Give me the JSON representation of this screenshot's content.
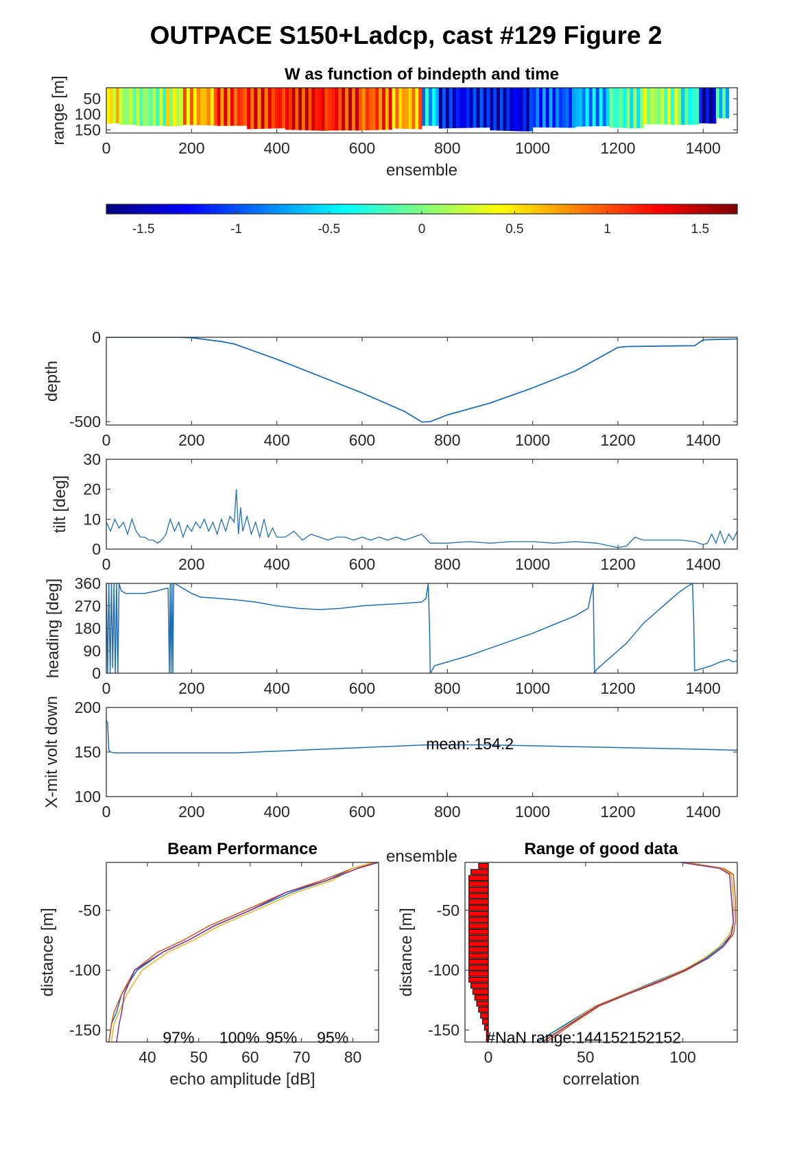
{
  "figure": {
    "title": "OUTPACE S150+Ladcp, cast #129 Figure 2",
    "line_color": "#1f6fb4"
  },
  "chart_data": [
    {
      "id": "w_image",
      "type": "heatmap",
      "title": "W as function of bindepth and time",
      "xlabel": "ensemble",
      "ylabel": "range [m]",
      "xlim": [
        0,
        1480
      ],
      "ylim": [
        15,
        160
      ],
      "xticks": [
        0,
        200,
        400,
        600,
        800,
        1000,
        1200,
        1400
      ],
      "yticks": [
        50,
        100,
        150
      ],
      "colorbar": {
        "clim": [
          -1.7,
          1.7
        ],
        "ticks": [
          -1.5,
          -1,
          -0.5,
          0,
          0.5,
          1,
          1.5
        ],
        "tick_labels": [
          "-1.5",
          "-1",
          "-0.5",
          "0",
          "0.5",
          "1",
          "1.5"
        ],
        "colormap": "jet"
      },
      "segments": [
        {
          "x": [
            0,
            30
          ],
          "w": 0.45,
          "bottom": 130
        },
        {
          "x": [
            30,
            70
          ],
          "w": 0.1,
          "bottom": 140
        },
        {
          "x": [
            70,
            140
          ],
          "w": 0.0,
          "bottom": 145
        },
        {
          "x": [
            140,
            180
          ],
          "w": 0.25,
          "bottom": 140
        },
        {
          "x": [
            180,
            260
          ],
          "w": 0.7,
          "bottom": 140
        },
        {
          "x": [
            260,
            330
          ],
          "w": 1.05,
          "bottom": 145
        },
        {
          "x": [
            330,
            420
          ],
          "w": 1.15,
          "bottom": 150
        },
        {
          "x": [
            420,
            520
          ],
          "w": 1.25,
          "bottom": 155
        },
        {
          "x": [
            520,
            600
          ],
          "w": 1.2,
          "bottom": 160
        },
        {
          "x": [
            600,
            670
          ],
          "w": 1.0,
          "bottom": 155
        },
        {
          "x": [
            670,
            740
          ],
          "w": 0.7,
          "bottom": 150
        },
        {
          "x": [
            740,
            780
          ],
          "w": -0.6,
          "bottom": 145
        },
        {
          "x": [
            780,
            900
          ],
          "w": -1.3,
          "bottom": 150
        },
        {
          "x": [
            900,
            1000
          ],
          "w": -1.35,
          "bottom": 155
        },
        {
          "x": [
            1000,
            1100
          ],
          "w": -1.0,
          "bottom": 150
        },
        {
          "x": [
            1100,
            1180
          ],
          "w": -0.7,
          "bottom": 145
        },
        {
          "x": [
            1180,
            1260
          ],
          "w": -0.2,
          "bottom": 145
        },
        {
          "x": [
            1260,
            1340
          ],
          "w": 0.1,
          "bottom": 140
        },
        {
          "x": [
            1340,
            1390
          ],
          "w": -0.3,
          "bottom": 140
        },
        {
          "x": [
            1390,
            1430
          ],
          "w": -1.5,
          "bottom": 130
        },
        {
          "x": [
            1430,
            1460
          ],
          "w": -0.4,
          "bottom": 120
        }
      ]
    },
    {
      "id": "depth",
      "type": "line",
      "xlabel": "",
      "ylabel": "depth",
      "xlim": [
        0,
        1480
      ],
      "ylim": [
        -520,
        0
      ],
      "xticks": [
        0,
        200,
        400,
        600,
        800,
        1000,
        1200,
        1400
      ],
      "yticks": [
        -500,
        0
      ],
      "series": [
        {
          "x": [
            0,
            170,
            200,
            270,
            300,
            400,
            500,
            600,
            700,
            740,
            760,
            800,
            900,
            1000,
            1100,
            1200,
            1220,
            1300,
            1380,
            1400,
            1480
          ],
          "y": [
            0,
            0,
            -3,
            -25,
            -40,
            -130,
            -230,
            -330,
            -440,
            -502,
            -500,
            -460,
            -390,
            -300,
            -200,
            -60,
            -55,
            -52,
            -50,
            -15,
            -10
          ]
        }
      ]
    },
    {
      "id": "tilt",
      "type": "line",
      "xlabel": "",
      "ylabel": "tilt [deg]",
      "xlim": [
        0,
        1480
      ],
      "ylim": [
        0,
        30
      ],
      "xticks": [
        0,
        200,
        400,
        600,
        800,
        1000,
        1200,
        1400
      ],
      "yticks": [
        0,
        10,
        20,
        30
      ],
      "series": [
        {
          "x": [
            0,
            10,
            20,
            30,
            40,
            50,
            60,
            70,
            80,
            90,
            100,
            110,
            120,
            130,
            140,
            150,
            160,
            170,
            180,
            190,
            200,
            210,
            220,
            230,
            240,
            250,
            260,
            270,
            280,
            290,
            300,
            305,
            310,
            315,
            320,
            330,
            340,
            350,
            360,
            370,
            380,
            390,
            400,
            420,
            440,
            460,
            480,
            500,
            520,
            540,
            560,
            580,
            600,
            620,
            640,
            660,
            680,
            700,
            720,
            740,
            760,
            800,
            850,
            900,
            950,
            1000,
            1050,
            1100,
            1150,
            1200,
            1220,
            1240,
            1260,
            1300,
            1350,
            1380,
            1400,
            1410,
            1420,
            1430,
            1440,
            1450,
            1460,
            1470,
            1480
          ],
          "y": [
            9,
            6,
            10,
            7,
            9,
            5,
            10,
            6,
            4,
            4,
            3,
            3,
            2,
            3,
            5,
            10,
            6,
            9,
            4,
            8,
            6,
            9,
            7,
            10,
            6,
            9,
            5,
            10,
            6,
            11,
            9,
            20,
            5,
            14,
            6,
            11,
            5,
            9,
            4,
            10,
            4,
            7,
            4,
            4,
            6,
            3,
            5,
            4,
            3,
            4,
            4,
            3,
            4,
            3,
            4,
            3,
            4,
            3,
            4,
            5,
            2,
            2,
            2.5,
            2,
            2.5,
            2.5,
            2,
            2.5,
            2,
            0.5,
            1,
            4,
            3,
            3,
            3,
            2.5,
            1.5,
            2,
            5,
            2,
            6,
            2,
            5,
            3,
            6
          ]
        }
      ]
    },
    {
      "id": "heading",
      "type": "line",
      "xlabel": "",
      "ylabel": "heading [deg]",
      "xlim": [
        0,
        1480
      ],
      "ylim": [
        0,
        360
      ],
      "xticks": [
        0,
        200,
        400,
        600,
        800,
        1000,
        1200,
        1400
      ],
      "yticks": [
        0,
        90,
        180,
        270,
        360
      ],
      "series": [
        {
          "x": [
            0,
            3,
            6,
            9,
            12,
            15,
            18,
            21,
            24,
            27,
            30,
            35,
            45,
            60,
            90,
            120,
            140,
            145,
            148,
            150,
            152,
            154,
            156,
            158,
            160,
            170,
            180,
            200,
            220,
            260,
            300,
            350,
            400,
            450,
            500,
            550,
            600,
            650,
            700,
            740,
            750,
            755,
            758,
            760,
            770,
            800,
            850,
            900,
            950,
            1000,
            1050,
            1100,
            1130,
            1140,
            1142,
            1145,
            1150,
            1180,
            1200,
            1220,
            1240,
            1260,
            1280,
            1300,
            1320,
            1340,
            1360,
            1375,
            1378,
            1380,
            1400,
            1420,
            1440,
            1460,
            1470,
            1480
          ],
          "y": [
            360,
            0,
            360,
            0,
            360,
            20,
            360,
            0,
            360,
            0,
            360,
            330,
            320,
            320,
            320,
            330,
            340,
            340,
            0,
            360,
            0,
            360,
            0,
            360,
            360,
            350,
            340,
            320,
            305,
            300,
            295,
            285,
            270,
            260,
            255,
            260,
            270,
            275,
            280,
            285,
            300,
            360,
            200,
            0,
            30,
            45,
            70,
            100,
            130,
            160,
            195,
            230,
            260,
            340,
            360,
            0,
            15,
            60,
            90,
            120,
            160,
            200,
            230,
            260,
            290,
            320,
            345,
            360,
            200,
            10,
            20,
            30,
            45,
            55,
            45,
            50
          ]
        }
      ]
    },
    {
      "id": "xmit",
      "type": "line",
      "xlabel": "ensemble",
      "ylabel": "X-mit volt down",
      "xlim": [
        0,
        1480
      ],
      "ylim": [
        100,
        200
      ],
      "xticks": [
        0,
        200,
        400,
        600,
        800,
        1000,
        1200,
        1400
      ],
      "yticks": [
        100,
        150,
        200
      ],
      "annotation": {
        "text": "mean: 154.2",
        "x": 750,
        "y": 150
      },
      "series": [
        {
          "x": [
            0,
            3,
            6,
            10,
            20,
            50,
            100,
            200,
            300,
            400,
            500,
            600,
            700,
            750,
            800,
            900,
            1000,
            1100,
            1200,
            1300,
            1400,
            1480
          ],
          "y": [
            185,
            183,
            152,
            150,
            149,
            149,
            149,
            149,
            149,
            151,
            153,
            155,
            157,
            158,
            158,
            158,
            157,
            156,
            155,
            154,
            153,
            152
          ]
        }
      ]
    },
    {
      "id": "beam",
      "type": "line",
      "title": "Beam Performance",
      "xlabel": "echo amplitude [dB]",
      "ylabel": "distance [m]",
      "xlim": [
        32,
        85
      ],
      "ylim": [
        -160,
        -10
      ],
      "xticks": [
        40,
        50,
        60,
        70,
        80
      ],
      "yticks": [
        -150,
        -100,
        -50
      ],
      "annotations": [
        {
          "text": "97%",
          "x": 43,
          "y": -155
        },
        {
          "text": "100%",
          "x": 54,
          "y": -155
        },
        {
          "text": "95%",
          "x": 63,
          "y": -155
        },
        {
          "text": "95%",
          "x": 73,
          "y": -155
        }
      ],
      "series": [
        {
          "color": "#0072bd",
          "x": [
            84,
            80,
            75,
            68,
            60,
            53,
            48,
            43,
            38,
            35,
            34,
            33,
            32.5
          ],
          "y": [
            -10,
            -15,
            -25,
            -35,
            -50,
            -63,
            -75,
            -85,
            -100,
            -120,
            -135,
            -145,
            -160
          ]
        },
        {
          "color": "#d95319",
          "x": [
            85,
            80,
            74,
            67,
            59,
            52,
            47,
            42,
            37.5,
            35,
            33.5,
            33,
            32.5
          ],
          "y": [
            -10,
            -15,
            -25,
            -35,
            -50,
            -63,
            -75,
            -85,
            -100,
            -120,
            -135,
            -145,
            -160
          ]
        },
        {
          "color": "#edb120",
          "x": [
            84,
            80,
            76,
            69,
            61,
            54,
            49,
            44,
            39,
            36,
            34.5,
            33.5,
            33
          ],
          "y": [
            -10,
            -15,
            -25,
            -35,
            -50,
            -63,
            -75,
            -85,
            -100,
            -120,
            -135,
            -145,
            -160
          ]
        },
        {
          "color": "#7e2f8e",
          "x": [
            85,
            81,
            75,
            67,
            60,
            53,
            48,
            43,
            37.5,
            35.5,
            35,
            34.5,
            34
          ],
          "y": [
            -10,
            -15,
            -25,
            -35,
            -50,
            -63,
            -75,
            -85,
            -100,
            -120,
            -135,
            -145,
            -160
          ]
        }
      ]
    },
    {
      "id": "range_good",
      "type": "line",
      "title": "Range of good data",
      "xlabel": "correlation",
      "ylabel": "distance [m]",
      "xlim": [
        -12,
        128
      ],
      "ylim": [
        -160,
        -10
      ],
      "xticks": [
        0,
        50,
        100
      ],
      "yticks": [
        -150,
        -100,
        -50
      ],
      "annotation": {
        "text": "#NaN range:144152152152",
        "x": -1,
        "y": -155
      },
      "bars": {
        "color": "#ff0000",
        "y": [
          -13,
          -18,
          -23,
          -28,
          -33,
          -38,
          -43,
          -48,
          -53,
          -58,
          -63,
          -68,
          -73,
          -78,
          -83,
          -88,
          -93,
          -98,
          -103,
          -108,
          -113,
          -118,
          -123,
          -128,
          -133,
          -138,
          -143,
          -148,
          -153,
          -158
        ],
        "values": [
          -5,
          -9,
          -10,
          -10,
          -10,
          -10,
          -10,
          -10,
          -10,
          -10,
          -10,
          -10,
          -10,
          -10,
          -10,
          -10,
          -10,
          -10,
          -10,
          -10,
          -9,
          -8,
          -7,
          -6,
          -5,
          -4,
          -3,
          -2,
          -1,
          -1
        ]
      },
      "series": [
        {
          "color": "#0072bd",
          "x": [
            100,
            120,
            125,
            126,
            126,
            125,
            120,
            112,
            100,
            85,
            70,
            55,
            40,
            25
          ],
          "y": [
            -10,
            -15,
            -20,
            -40,
            -60,
            -70,
            -80,
            -90,
            -100,
            -110,
            -120,
            -130,
            -145,
            -160
          ]
        },
        {
          "color": "#d95319",
          "x": [
            102,
            121,
            126,
            127,
            127,
            126,
            121,
            113,
            102,
            88,
            72,
            57,
            43,
            30
          ],
          "y": [
            -10,
            -15,
            -20,
            -40,
            -60,
            -70,
            -80,
            -90,
            -100,
            -110,
            -120,
            -130,
            -145,
            -160
          ]
        },
        {
          "color": "#edb120",
          "x": [
            101,
            120,
            125,
            126,
            126,
            124,
            119,
            111,
            100,
            86,
            70,
            55,
            41,
            27
          ],
          "y": [
            -10,
            -15,
            -20,
            -40,
            -60,
            -70,
            -80,
            -90,
            -100,
            -110,
            -120,
            -130,
            -145,
            -160
          ]
        },
        {
          "color": "#7e2f8e",
          "x": [
            99,
            119,
            124,
            125,
            126,
            125,
            121,
            113,
            101,
            87,
            71,
            56,
            42,
            28
          ],
          "y": [
            -10,
            -15,
            -20,
            -40,
            -60,
            -70,
            -80,
            -90,
            -100,
            -110,
            -120,
            -130,
            -145,
            -160
          ]
        }
      ]
    }
  ]
}
